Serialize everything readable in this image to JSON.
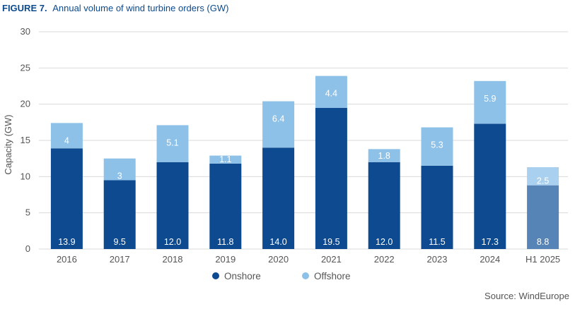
{
  "figure": {
    "label": "FIGURE 7.",
    "title": "Annual volume of wind turbine orders (GW)"
  },
  "source": "Source: WindEurope",
  "colors": {
    "onshore": "#0d4a8f",
    "offshore": "#8ec1e8",
    "onshore_projected": "#5684b6",
    "offshore_projected": "#a9d1ef",
    "grid": "#d9d9d9",
    "axis_text": "#555555",
    "title": "#0c4a8c"
  },
  "chart_data": {
    "type": "bar",
    "stacked": true,
    "categories": [
      "2016",
      "2017",
      "2018",
      "2019",
      "2020",
      "2021",
      "2022",
      "2023",
      "2024",
      "H1 2025"
    ],
    "series": [
      {
        "name": "Onshore",
        "values": [
          13.9,
          9.5,
          12.0,
          11.8,
          14.0,
          19.5,
          12.0,
          11.5,
          17.3,
          8.8
        ],
        "labels": [
          "13.9",
          "9.5",
          "12.0",
          "11.8",
          "14.0",
          "19.5",
          "12.0",
          "11.5",
          "17.3",
          "8.8"
        ]
      },
      {
        "name": "Offshore",
        "values": [
          3.5,
          3,
          5.1,
          1.1,
          6.4,
          4.4,
          1.8,
          5.3,
          5.9,
          2.5
        ],
        "labels": [
          "4",
          "3",
          "5.1",
          "1.1",
          "6.4",
          "4.4",
          "1.8",
          "5.3",
          "5.9",
          "2.5"
        ]
      }
    ],
    "title": "",
    "xlabel": "",
    "ylabel": "Capacity (GW)",
    "ylim": [
      0,
      30
    ],
    "yticks": [
      "0",
      "5",
      "10",
      "15",
      "20",
      "25",
      "30"
    ],
    "grid": true,
    "legend": "bottom-center"
  }
}
